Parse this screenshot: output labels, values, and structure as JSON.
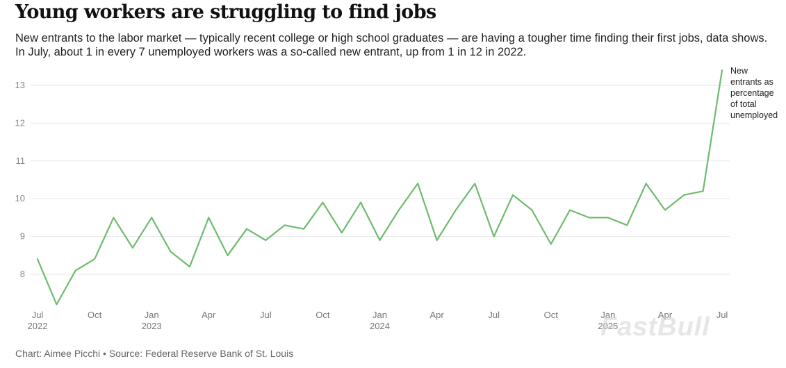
{
  "title": "Young workers are struggling to find jobs",
  "subtitle": "New entrants to the labor market — typically recent college or high school graduates — are having a tougher time finding their first jobs, data shows. In July, about 1 in every 7 unemployed workers was a so-called new entrant, up from 1 in 12 in 2022.",
  "footer": "Chart: Aimee Picchi • Source: Federal Reserve Bank of St. Louis",
  "watermark": "FastBull",
  "colors": {
    "line": "#6cbb6c",
    "grid": "#e6e6e6",
    "axis_text": "#888888"
  },
  "chart_data": {
    "type": "line",
    "title": "",
    "xlabel": "",
    "ylabel": "",
    "ylim": [
      7.2,
      13.5
    ],
    "yticks": [
      8,
      9,
      10,
      11,
      12,
      13
    ],
    "grid": "horizontal",
    "x_ticks": [
      {
        "index": 0,
        "label": "Jul",
        "year": "2022"
      },
      {
        "index": 3,
        "label": "Oct",
        "year": ""
      },
      {
        "index": 6,
        "label": "Jan",
        "year": "2023"
      },
      {
        "index": 9,
        "label": "Apr",
        "year": ""
      },
      {
        "index": 12,
        "label": "Jul",
        "year": ""
      },
      {
        "index": 15,
        "label": "Oct",
        "year": ""
      },
      {
        "index": 18,
        "label": "Jan",
        "year": "2024"
      },
      {
        "index": 21,
        "label": "Apr",
        "year": ""
      },
      {
        "index": 24,
        "label": "Jul",
        "year": ""
      },
      {
        "index": 27,
        "label": "Oct",
        "year": ""
      },
      {
        "index": 30,
        "label": "Jan",
        "year": "2025"
      },
      {
        "index": 33,
        "label": "Apr",
        "year": ""
      },
      {
        "index": 36,
        "label": "Jul",
        "year": ""
      }
    ],
    "series": [
      {
        "name": "New entrants as percentage of total unemployed",
        "x": [
          "2022-07",
          "2022-08",
          "2022-09",
          "2022-10",
          "2022-11",
          "2022-12",
          "2023-01",
          "2023-02",
          "2023-03",
          "2023-04",
          "2023-05",
          "2023-06",
          "2023-07",
          "2023-08",
          "2023-09",
          "2023-10",
          "2023-11",
          "2023-12",
          "2024-01",
          "2024-02",
          "2024-03",
          "2024-04",
          "2024-05",
          "2024-06",
          "2024-07",
          "2024-08",
          "2024-09",
          "2024-10",
          "2024-11",
          "2024-12",
          "2025-01",
          "2025-02",
          "2025-03",
          "2025-04",
          "2025-05",
          "2025-06",
          "2025-07"
        ],
        "values": [
          8.4,
          7.2,
          8.1,
          8.4,
          9.5,
          8.7,
          9.5,
          8.6,
          8.2,
          9.5,
          8.5,
          9.2,
          8.9,
          9.3,
          9.2,
          9.9,
          9.1,
          9.9,
          8.9,
          9.7,
          10.4,
          8.9,
          9.7,
          10.4,
          9.0,
          10.1,
          9.7,
          8.8,
          9.7,
          9.5,
          9.5,
          9.3,
          10.4,
          9.7,
          10.1,
          10.2,
          13.4
        ]
      }
    ],
    "series_label_lines": [
      "New",
      "entrants as",
      "percentage",
      "of total",
      "unemployed"
    ]
  }
}
